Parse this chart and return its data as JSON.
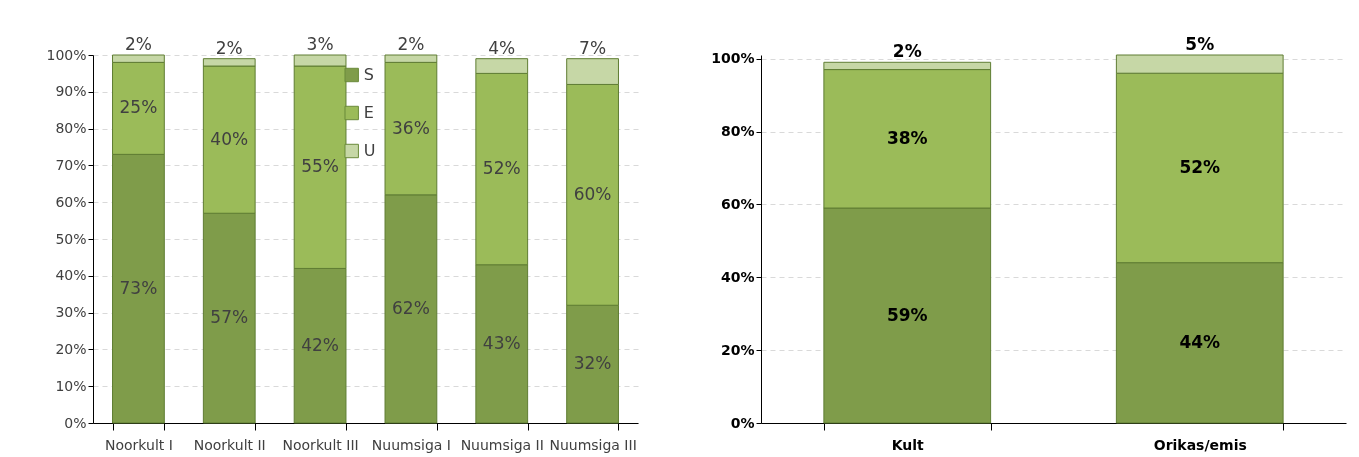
{
  "chart_data": [
    {
      "type": "bar",
      "stacked": true,
      "categories": [
        "Noorkult I",
        "Noorkult II",
        "Noorkult III",
        "Nuumsiga I",
        "Nuumsiga II",
        "Nuumsiga III"
      ],
      "series": [
        {
          "name": "S",
          "color": "#7f9c4a",
          "values": [
            73,
            57,
            42,
            62,
            43,
            32
          ],
          "value_labels": [
            "73%",
            "57%",
            "42%",
            "62%",
            "43%",
            "32%"
          ]
        },
        {
          "name": "E",
          "color": "#9bbb59",
          "values": [
            25,
            40,
            55,
            36,
            52,
            60
          ],
          "value_labels": [
            "25%",
            "40%",
            "55%",
            "36%",
            "52%",
            "60%"
          ]
        },
        {
          "name": "U",
          "color": "#c6d7a6",
          "values": [
            2,
            2,
            3,
            2,
            4,
            7
          ],
          "value_labels": [
            "2%",
            "2%",
            "3%",
            "2%",
            "4%",
            "7%"
          ]
        }
      ],
      "ylim": [
        0,
        100
      ],
      "yticks": [
        {
          "value": 0,
          "label": "0%"
        },
        {
          "value": 10,
          "label": "10%"
        },
        {
          "value": 20,
          "label": "20%"
        },
        {
          "value": 30,
          "label": "30%"
        },
        {
          "value": 40,
          "label": "40%"
        },
        {
          "value": 50,
          "label": "50%"
        },
        {
          "value": 60,
          "label": "60%"
        },
        {
          "value": 70,
          "label": "70%"
        },
        {
          "value": 80,
          "label": "80%"
        },
        {
          "value": 90,
          "label": "90%"
        },
        {
          "value": 100,
          "label": "100%"
        }
      ],
      "grid": "y",
      "legend": "top"
    },
    {
      "type": "bar",
      "stacked": true,
      "categories": [
        "Kult",
        "Orikas/emis"
      ],
      "series": [
        {
          "name": "S",
          "color": "#7f9c4a",
          "values": [
            59,
            44
          ],
          "value_labels": [
            "59%",
            "44%"
          ]
        },
        {
          "name": "E",
          "color": "#9bbb59",
          "values": [
            38,
            52
          ],
          "value_labels": [
            "38%",
            "52%"
          ]
        },
        {
          "name": "U",
          "color": "#c6d7a6",
          "values": [
            2,
            5
          ],
          "value_labels": [
            "2%",
            "5%"
          ]
        }
      ],
      "ylim": [
        0,
        101
      ],
      "yticks": [
        {
          "value": 0,
          "label": "0%"
        },
        {
          "value": 20,
          "label": "20%"
        },
        {
          "value": 40,
          "label": "40%"
        },
        {
          "value": 60,
          "label": "60%"
        },
        {
          "value": 80,
          "label": "80%"
        },
        {
          "value": 100,
          "label": "100%"
        }
      ],
      "grid": "y",
      "legend": "top"
    }
  ]
}
